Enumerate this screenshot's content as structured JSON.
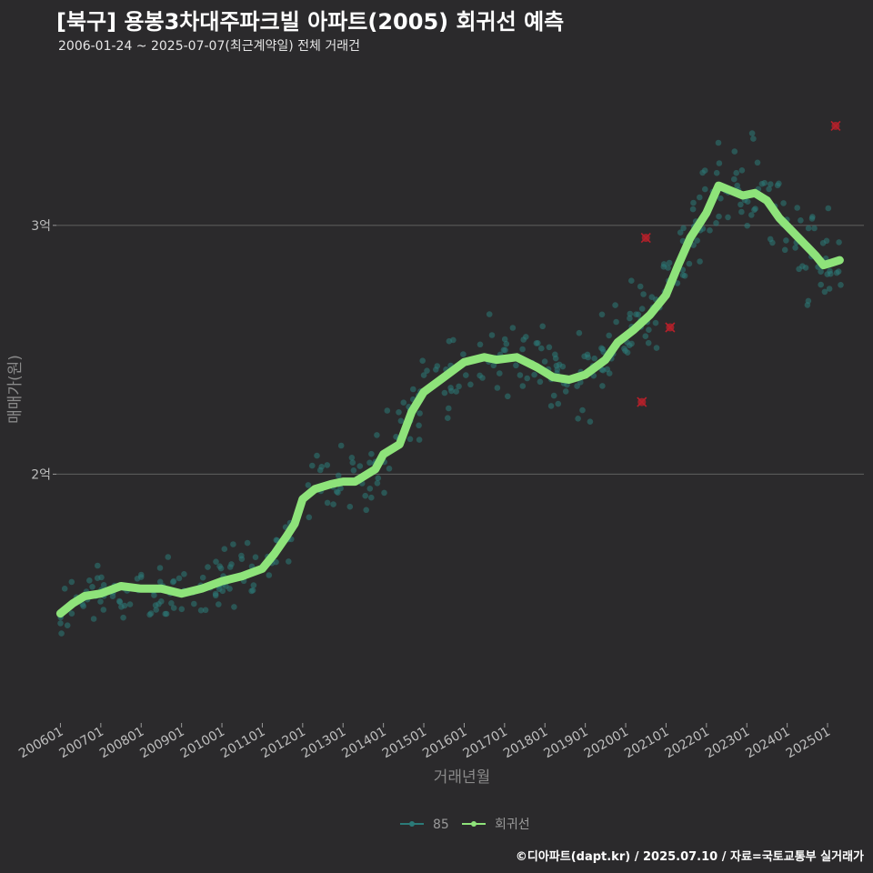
{
  "header": {
    "title": "[북구] 용봉3차대주파크빌 아파트(2005) 회귀선 예측",
    "subtitle": "2006-01-24 ~ 2025-07-07(최근계약일) 전체 거래건"
  },
  "footer": {
    "credit": "©디아파트(dapt.kr) / 2025.07.10 / 자료=국토교통부 실거래가"
  },
  "colors": {
    "background": "#2b2a2c",
    "scatter": "#2b7a78",
    "regression": "#8ee37a",
    "outlier": "#b5202a",
    "grid": "#5a5a5a"
  },
  "chart_data": {
    "type": "scatter",
    "xlabel": "거래년월",
    "ylabel": "매매가(원)",
    "x_tick_labels": [
      "200601",
      "200701",
      "200801",
      "200901",
      "201001",
      "201101",
      "201201",
      "201301",
      "201401",
      "201501",
      "201601",
      "201701",
      "201801",
      "201901",
      "202001",
      "202101",
      "202201",
      "202301",
      "202401",
      "202501"
    ],
    "y_ticks": [
      {
        "value": 2.0,
        "label": "2억"
      },
      {
        "value": 3.0,
        "label": "3억"
      }
    ],
    "xlim": [
      2005.9,
      2025.9
    ],
    "ylim": [
      1.0,
      3.65
    ],
    "grid": "horizontal",
    "legend": {
      "position": "bottom",
      "items": [
        {
          "label": "85",
          "key": "scatter"
        },
        {
          "label": "회귀선",
          "key": "regression"
        }
      ]
    },
    "series": [
      {
        "name": "85",
        "kind": "scatter",
        "seed": 7,
        "n": 420
      },
      {
        "name": "회귀선",
        "kind": "line",
        "points": [
          [
            2006.0,
            1.44
          ],
          [
            2006.3,
            1.48
          ],
          [
            2006.6,
            1.51
          ],
          [
            2007.0,
            1.52
          ],
          [
            2007.5,
            1.55
          ],
          [
            2008.0,
            1.54
          ],
          [
            2008.5,
            1.54
          ],
          [
            2009.0,
            1.52
          ],
          [
            2009.5,
            1.54
          ],
          [
            2010.0,
            1.57
          ],
          [
            2010.5,
            1.59
          ],
          [
            2011.0,
            1.62
          ],
          [
            2011.3,
            1.68
          ],
          [
            2011.6,
            1.75
          ],
          [
            2011.8,
            1.8
          ],
          [
            2012.0,
            1.9
          ],
          [
            2012.3,
            1.94
          ],
          [
            2012.7,
            1.96
          ],
          [
            2013.0,
            1.97
          ],
          [
            2013.3,
            1.97
          ],
          [
            2013.8,
            2.02
          ],
          [
            2014.0,
            2.08
          ],
          [
            2014.4,
            2.12
          ],
          [
            2014.7,
            2.25
          ],
          [
            2015.0,
            2.33
          ],
          [
            2015.5,
            2.39
          ],
          [
            2016.0,
            2.45
          ],
          [
            2016.5,
            2.47
          ],
          [
            2016.8,
            2.46
          ],
          [
            2017.3,
            2.47
          ],
          [
            2017.8,
            2.43
          ],
          [
            2018.2,
            2.39
          ],
          [
            2018.6,
            2.38
          ],
          [
            2019.0,
            2.4
          ],
          [
            2019.5,
            2.46
          ],
          [
            2019.8,
            2.53
          ],
          [
            2020.2,
            2.58
          ],
          [
            2020.6,
            2.64
          ],
          [
            2021.0,
            2.72
          ],
          [
            2021.3,
            2.84
          ],
          [
            2021.6,
            2.95
          ],
          [
            2022.0,
            3.05
          ],
          [
            2022.3,
            3.16
          ],
          [
            2022.6,
            3.14
          ],
          [
            2022.9,
            3.12
          ],
          [
            2023.2,
            3.13
          ],
          [
            2023.5,
            3.1
          ],
          [
            2023.8,
            3.03
          ],
          [
            2024.1,
            2.98
          ],
          [
            2024.4,
            2.93
          ],
          [
            2024.7,
            2.88
          ],
          [
            2024.9,
            2.84
          ],
          [
            2025.1,
            2.85
          ],
          [
            2025.3,
            2.86
          ]
        ]
      },
      {
        "name": "outliers",
        "kind": "marker",
        "points": [
          [
            2020.4,
            2.29
          ],
          [
            2020.5,
            2.95
          ],
          [
            2021.1,
            2.59
          ],
          [
            2025.2,
            3.4
          ]
        ]
      }
    ]
  }
}
